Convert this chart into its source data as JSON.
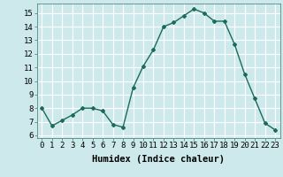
{
  "x": [
    0,
    1,
    2,
    3,
    4,
    5,
    6,
    7,
    8,
    9,
    10,
    11,
    12,
    13,
    14,
    15,
    16,
    17,
    18,
    19,
    20,
    21,
    22,
    23
  ],
  "y": [
    8.0,
    6.7,
    7.1,
    7.5,
    8.0,
    8.0,
    7.8,
    6.8,
    6.6,
    9.5,
    11.1,
    12.3,
    14.0,
    14.3,
    14.8,
    15.3,
    15.0,
    14.4,
    14.4,
    12.7,
    10.5,
    8.7,
    6.9,
    6.4
  ],
  "line_color": "#1a6b5a",
  "marker": "D",
  "marker_size": 2.0,
  "line_width": 1.0,
  "xlabel": "Humidex (Indice chaleur)",
  "xlim": [
    -0.5,
    23.5
  ],
  "ylim": [
    5.8,
    15.7
  ],
  "yticks": [
    6,
    7,
    8,
    9,
    10,
    11,
    12,
    13,
    14,
    15
  ],
  "xticks": [
    0,
    1,
    2,
    3,
    4,
    5,
    6,
    7,
    8,
    9,
    10,
    11,
    12,
    13,
    14,
    15,
    16,
    17,
    18,
    19,
    20,
    21,
    22,
    23
  ],
  "background_color": "#cee9ec",
  "grid_color": "#ffffff",
  "tick_label_fontsize": 6.5,
  "xlabel_fontsize": 7.5,
  "xlabel_fontweight": "bold"
}
